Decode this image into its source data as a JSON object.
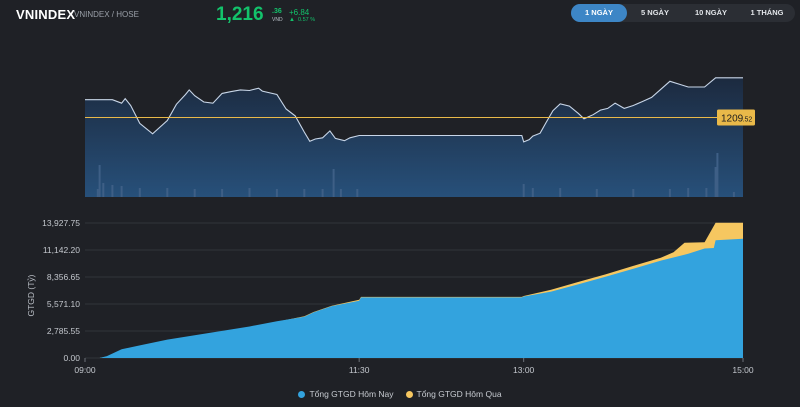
{
  "header": {
    "symbol": "VNINDEX",
    "exchange": "VNINDEX / HOSE",
    "price_main": "1,216",
    "price_decimal": ".36",
    "price_unit": "VND",
    "change_abs": "+6.84",
    "change_arrow": "▲",
    "change_pct": "0.57 %"
  },
  "range_tabs": [
    {
      "label": "1 NGÀY",
      "active": true
    },
    {
      "label": "5 NGÀY",
      "active": false
    },
    {
      "label": "10 NGÀY",
      "active": false
    },
    {
      "label": "1 THÁNG",
      "active": false
    }
  ],
  "colors": {
    "price_line": "#c8d6e8",
    "reference": "#e9b949",
    "today_fill": "#33a3de",
    "yesterday_fill": "#f6c760",
    "volume": "#3e5f86",
    "grid": "#3a3d43"
  },
  "chart_data": [
    {
      "type": "line",
      "reference": {
        "value": 1209.52,
        "label_main": "1209",
        "label_decimal": ".52"
      },
      "x_range": [
        "09:00",
        "15:00"
      ],
      "points": [
        [
          "09:00",
          1212.6
        ],
        [
          "09:15",
          1212.6
        ],
        [
          "09:20",
          1212.0
        ],
        [
          "09:22",
          1212.8
        ],
        [
          "09:25",
          1211.6
        ],
        [
          "09:30",
          1208.5
        ],
        [
          "09:37",
          1206.7
        ],
        [
          "09:45",
          1209.0
        ],
        [
          "09:50",
          1211.8
        ],
        [
          "09:55",
          1213.5
        ],
        [
          "09:57",
          1214.3
        ],
        [
          "10:00",
          1213.3
        ],
        [
          "10:05",
          1212.2
        ],
        [
          "10:10",
          1212.0
        ],
        [
          "10:15",
          1213.7
        ],
        [
          "10:20",
          1214.0
        ],
        [
          "10:25",
          1214.3
        ],
        [
          "10:30",
          1214.2
        ],
        [
          "10:35",
          1214.6
        ],
        [
          "10:37",
          1214.1
        ],
        [
          "10:45",
          1213.5
        ],
        [
          "10:50",
          1211.0
        ],
        [
          "10:55",
          1209.8
        ],
        [
          "11:00",
          1207.0
        ],
        [
          "11:03",
          1205.4
        ],
        [
          "11:06",
          1205.8
        ],
        [
          "11:10",
          1206.0
        ],
        [
          "11:14",
          1207.2
        ],
        [
          "11:17",
          1205.9
        ],
        [
          "11:22",
          1205.5
        ],
        [
          "11:25",
          1206.0
        ],
        [
          "11:30",
          1206.4
        ],
        [
          "12:59",
          1206.4
        ],
        [
          "13:00",
          1205.3
        ],
        [
          "13:03",
          1205.7
        ],
        [
          "13:05",
          1206.3
        ],
        [
          "13:09",
          1206.8
        ],
        [
          "13:12",
          1208.5
        ],
        [
          "13:16",
          1210.7
        ],
        [
          "13:20",
          1211.9
        ],
        [
          "13:25",
          1211.5
        ],
        [
          "13:30",
          1210.2
        ],
        [
          "13:33",
          1209.3
        ],
        [
          "13:38",
          1210.0
        ],
        [
          "13:42",
          1210.8
        ],
        [
          "13:46",
          1211.1
        ],
        [
          "13:50",
          1212.0
        ],
        [
          "13:55",
          1211.1
        ],
        [
          "14:00",
          1211.6
        ],
        [
          "14:05",
          1212.3
        ],
        [
          "14:10",
          1213.0
        ],
        [
          "14:15",
          1214.4
        ],
        [
          "14:20",
          1215.8
        ],
        [
          "14:25",
          1215.3
        ],
        [
          "14:30",
          1214.8
        ],
        [
          "14:39",
          1214.8
        ],
        [
          "14:45",
          1216.4
        ],
        [
          "14:58",
          1216.4
        ],
        [
          "15:00",
          1216.4
        ]
      ],
      "volume_bars": [
        [
          "09:07",
          8
        ],
        [
          "09:08",
          32
        ],
        [
          "09:10",
          14
        ],
        [
          "09:15",
          12
        ],
        [
          "09:20",
          11
        ],
        [
          "09:30",
          9
        ],
        [
          "09:45",
          9
        ],
        [
          "10:00",
          8
        ],
        [
          "10:15",
          8
        ],
        [
          "10:30",
          9
        ],
        [
          "10:45",
          8
        ],
        [
          "11:00",
          8
        ],
        [
          "11:10",
          8
        ],
        [
          "11:16",
          28
        ],
        [
          "11:20",
          8
        ],
        [
          "11:29",
          8
        ],
        [
          "13:00",
          13
        ],
        [
          "13:05",
          9
        ],
        [
          "13:20",
          9
        ],
        [
          "13:40",
          8
        ],
        [
          "14:00",
          8
        ],
        [
          "14:20",
          8
        ],
        [
          "14:30",
          9
        ],
        [
          "14:40",
          9
        ],
        [
          "14:45",
          30
        ],
        [
          "14:46",
          44
        ],
        [
          "14:55",
          5
        ]
      ]
    },
    {
      "type": "area",
      "title": "",
      "ylabel": "GTGD (Tỷ)",
      "ylim": [
        0,
        13927.75
      ],
      "yticks": [
        "0.00",
        "2,785.55",
        "5,571.10",
        "8,356.65",
        "11,142.20",
        "13,927.75"
      ],
      "ytick_values": [
        0,
        2785.55,
        5571.1,
        8356.65,
        11142.2,
        13927.75
      ],
      "xticks": [
        "09:00",
        "11:30",
        "13:00",
        "15:00"
      ],
      "series": [
        {
          "name": "Tổng GTGD Hôm Nay",
          "points": [
            [
              "09:00",
              0
            ],
            [
              "09:08",
              0
            ],
            [
              "09:12",
              200
            ],
            [
              "09:20",
              900
            ],
            [
              "09:30",
              1300
            ],
            [
              "09:45",
              1900
            ],
            [
              "10:00",
              2350
            ],
            [
              "10:15",
              2800
            ],
            [
              "10:30",
              3250
            ],
            [
              "10:45",
              3800
            ],
            [
              "11:00",
              4250
            ],
            [
              "11:05",
              4700
            ],
            [
              "11:15",
              5350
            ],
            [
              "11:30",
              5900
            ],
            [
              "11:31",
              6250
            ],
            [
              "12:59",
              6250
            ],
            [
              "13:00",
              6350
            ],
            [
              "13:15",
              6850
            ],
            [
              "13:30",
              7600
            ],
            [
              "13:45",
              8400
            ],
            [
              "14:00",
              9200
            ],
            [
              "14:15",
              10050
            ],
            [
              "14:30",
              10750
            ],
            [
              "14:39",
              11300
            ],
            [
              "14:44",
              11350
            ],
            [
              "14:45",
              12150
            ],
            [
              "15:00",
              12300
            ]
          ]
        },
        {
          "name": "Tổng GTGD Hôm Qua",
          "points": [
            [
              "09:00",
              0
            ],
            [
              "09:08",
              0
            ],
            [
              "09:12",
              150
            ],
            [
              "09:20",
              800
            ],
            [
              "09:30",
              1150
            ],
            [
              "09:45",
              1700
            ],
            [
              "10:00",
              2200
            ],
            [
              "10:15",
              2650
            ],
            [
              "10:30",
              3150
            ],
            [
              "10:45",
              3750
            ],
            [
              "11:00",
              4300
            ],
            [
              "11:05",
              4750
            ],
            [
              "11:15",
              5400
            ],
            [
              "11:30",
              6000
            ],
            [
              "11:31",
              6300
            ],
            [
              "12:59",
              6300
            ],
            [
              "13:00",
              6400
            ],
            [
              "13:15",
              7050
            ],
            [
              "13:30",
              7850
            ],
            [
              "13:45",
              8650
            ],
            [
              "14:00",
              9500
            ],
            [
              "14:15",
              10350
            ],
            [
              "14:22",
              10900
            ],
            [
              "14:28",
              11900
            ],
            [
              "14:39",
              11950
            ],
            [
              "14:45",
              13950
            ],
            [
              "15:00",
              13950
            ]
          ]
        }
      ]
    }
  ]
}
